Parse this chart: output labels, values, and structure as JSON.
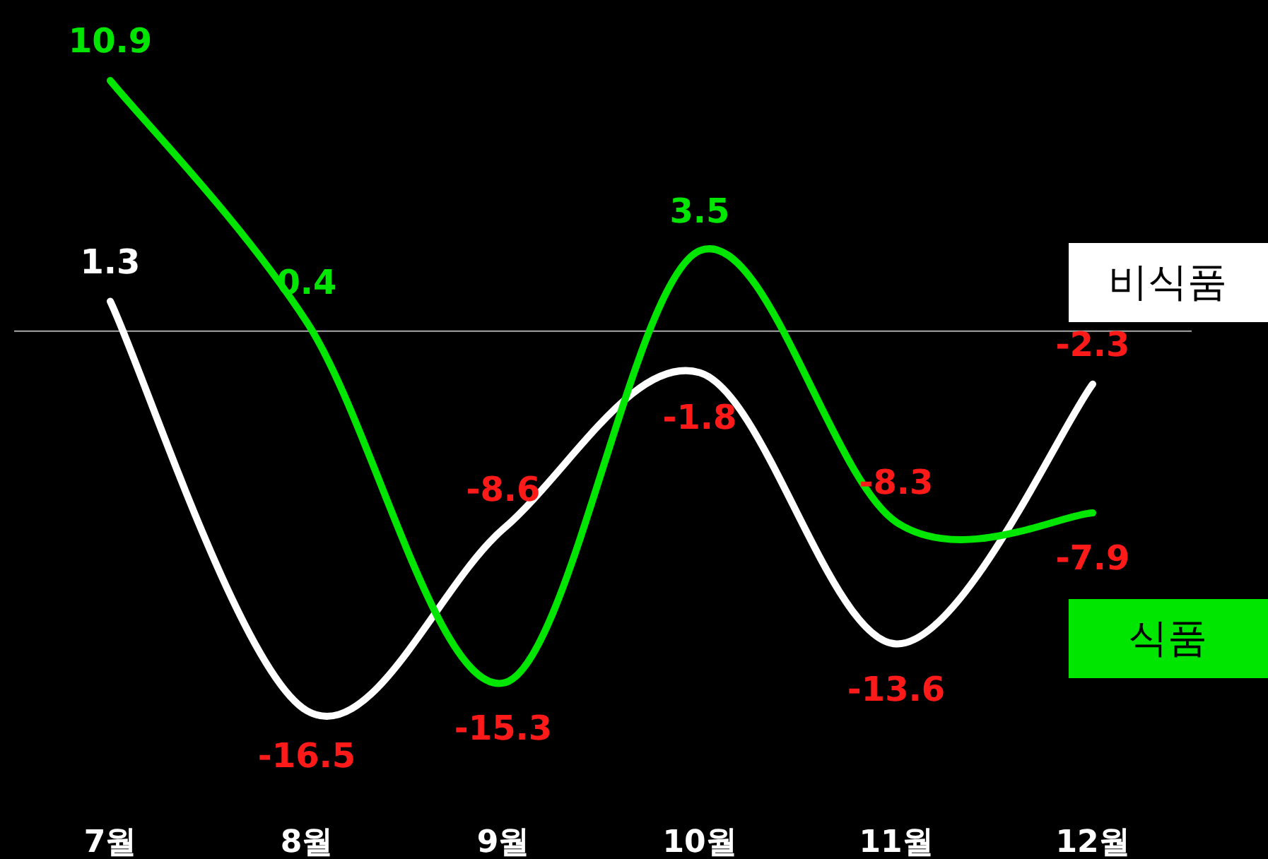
{
  "chart_data": {
    "type": "line",
    "categories": [
      "7월",
      "8월",
      "9월",
      "10월",
      "11월",
      "12월"
    ],
    "series": [
      {
        "name": "비식품",
        "color": "#ffffff",
        "values": [
          1.3,
          -16.5,
          -8.6,
          -1.8,
          -13.6,
          -2.3
        ]
      },
      {
        "name": "식품",
        "color": "#00e600",
        "values": [
          10.9,
          0.4,
          -15.3,
          3.5,
          -8.3,
          -7.9
        ]
      }
    ],
    "data_labels": true,
    "legend": "right",
    "marker": "none",
    "line_style": "solid",
    "ref_lines": [
      {
        "axis": "y",
        "value": 0,
        "color": "#aaaaaa"
      }
    ]
  }
}
